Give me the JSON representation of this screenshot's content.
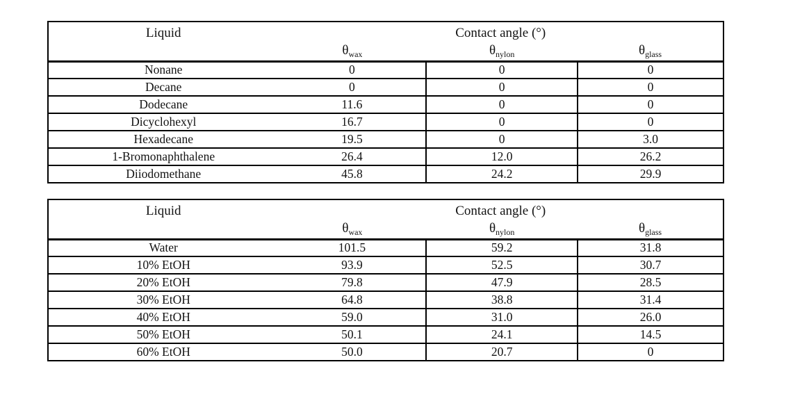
{
  "colors": {
    "page_background": "#ffffff",
    "table_background": "#ffffff",
    "border": "#000000",
    "text": "#131313"
  },
  "tables": [
    {
      "header": {
        "liquid": "Liquid",
        "contact_angle": "Contact angle (°)"
      },
      "theta_columns": [
        {
          "symbol": "θ",
          "subscript": "wax"
        },
        {
          "symbol": "θ",
          "subscript": "nylon"
        },
        {
          "symbol": "θ",
          "subscript": "glass"
        }
      ],
      "rows": [
        {
          "liquid": "Nonane",
          "wax": "0",
          "nylon": "0",
          "glass": "0"
        },
        {
          "liquid": "Decane",
          "wax": "0",
          "nylon": "0",
          "glass": "0"
        },
        {
          "liquid": "Dodecane",
          "wax": "11.6",
          "nylon": "0",
          "glass": "0"
        },
        {
          "liquid": "Dicyclohexyl",
          "wax": "16.7",
          "nylon": "0",
          "glass": "0"
        },
        {
          "liquid": "Hexadecane",
          "wax": "19.5",
          "nylon": "0",
          "glass": "3.0"
        },
        {
          "liquid": "1-Bromonaphthalene",
          "wax": "26.4",
          "nylon": "12.0",
          "glass": "26.2"
        },
        {
          "liquid": "Diiodomethane",
          "wax": "45.8",
          "nylon": "24.2",
          "glass": "29.9"
        }
      ]
    },
    {
      "header": {
        "liquid": "Liquid",
        "contact_angle": "Contact angle (°)"
      },
      "theta_columns": [
        {
          "symbol": "θ",
          "subscript": "wax"
        },
        {
          "symbol": "θ",
          "subscript": "nylon"
        },
        {
          "symbol": "θ",
          "subscript": "glass"
        }
      ],
      "rows": [
        {
          "liquid": "Water",
          "wax": "101.5",
          "nylon": "59.2",
          "glass": "31.8"
        },
        {
          "liquid": "10% EtOH",
          "wax": "93.9",
          "nylon": "52.5",
          "glass": "30.7"
        },
        {
          "liquid": "20% EtOH",
          "wax": "79.8",
          "nylon": "47.9",
          "glass": "28.5"
        },
        {
          "liquid": "30% EtOH",
          "wax": "64.8",
          "nylon": "38.8",
          "glass": "31.4"
        },
        {
          "liquid": "40% EtOH",
          "wax": "59.0",
          "nylon": "31.0",
          "glass": "26.0"
        },
        {
          "liquid": "50% EtOH",
          "wax": "50.1",
          "nylon": "24.1",
          "glass": "14.5"
        },
        {
          "liquid": "60% EtOH",
          "wax": "50.0",
          "nylon": "20.7",
          "glass": "0"
        }
      ]
    }
  ]
}
